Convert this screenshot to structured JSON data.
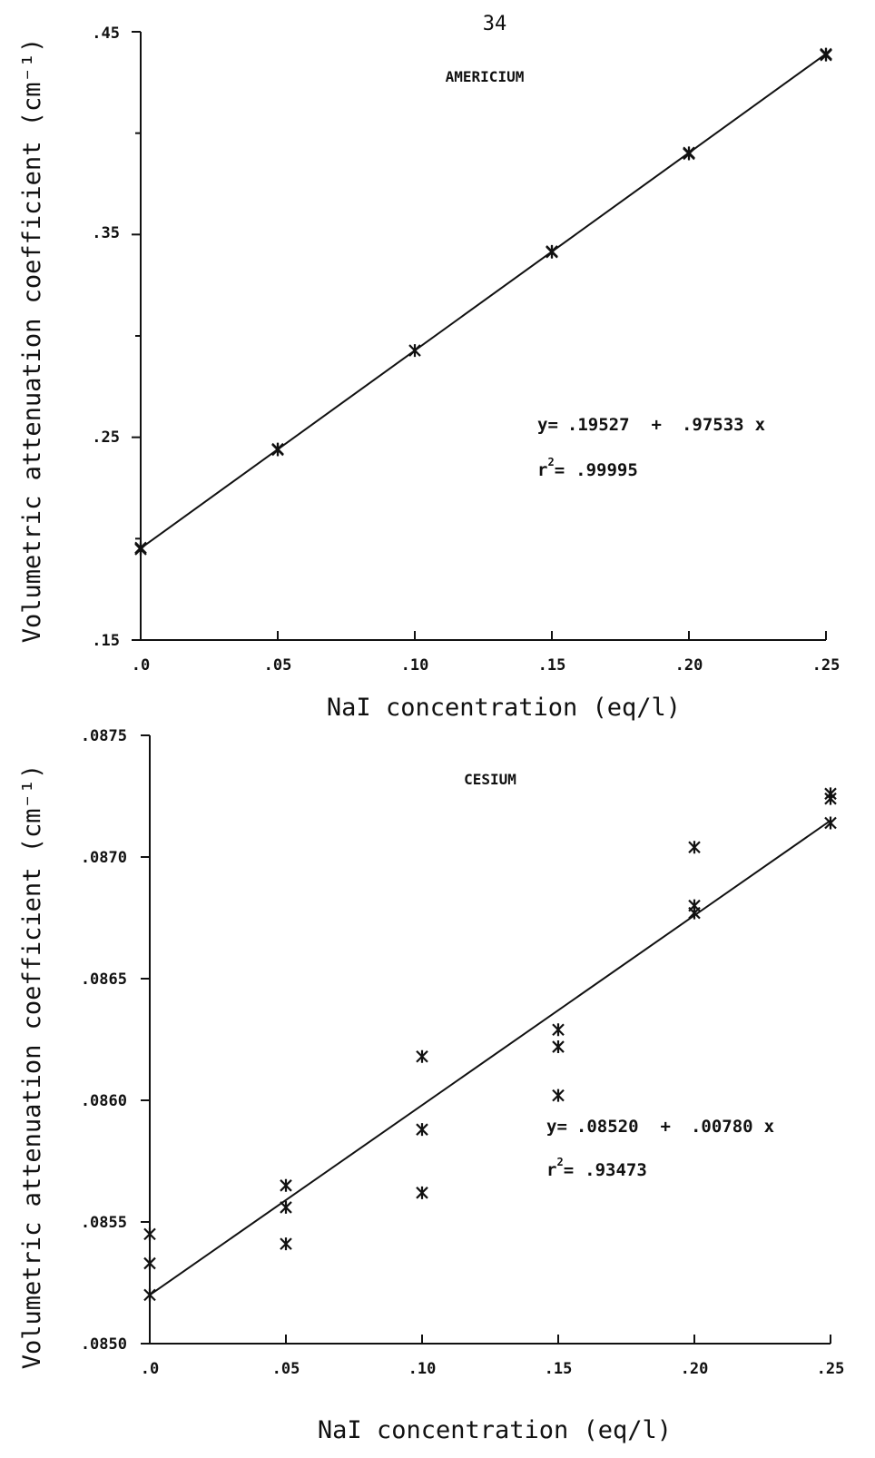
{
  "page_number": "34",
  "chart_data": [
    {
      "type": "scatter",
      "title": "AMERICIUM",
      "xlabel": "NaI concentration (eq/l)",
      "ylabel": "Volumetric attenuation coefficient (cm⁻¹)",
      "x_ticks": [
        ".0",
        ".05",
        ".10",
        ".15",
        ".20",
        ".25"
      ],
      "y_ticks": [
        ".15",
        ".25",
        ".35",
        ".45"
      ],
      "xlim": [
        0,
        0.25
      ],
      "ylim": [
        0.15,
        0.45
      ],
      "series": [
        {
          "points": [
            {
              "x": 0.0,
              "y": 0.1955
            },
            {
              "x": 0.0,
              "y": 0.1948
            },
            {
              "x": 0.05,
              "y": 0.2438
            },
            {
              "x": 0.05,
              "y": 0.2442
            },
            {
              "x": 0.1,
              "y": 0.2928
            },
            {
              "x": 0.15,
              "y": 0.3417
            },
            {
              "x": 0.15,
              "y": 0.3413
            },
            {
              "x": 0.2,
              "y": 0.3903
            },
            {
              "x": 0.2,
              "y": 0.3898
            },
            {
              "x": 0.25,
              "y": 0.439
            },
            {
              "x": 0.25,
              "y": 0.4385
            }
          ]
        }
      ],
      "fit": {
        "intercept": 0.19527,
        "slope": 0.97533
      },
      "equation": {
        "lhs": "y=",
        "intercept": ".19527",
        "plus": "+",
        "slope": ".97533",
        "x": "x",
        "r_symbol": "r",
        "r_exp": "2",
        "r_eq": "=",
        "r_value": ".99995"
      }
    },
    {
      "type": "scatter",
      "title": "CESIUM",
      "xlabel": "NaI concentration (eq/l)",
      "ylabel": "Volumetric attenuation coefficient (cm⁻¹)",
      "x_ticks": [
        ".0",
        ".05",
        ".10",
        ".15",
        ".20",
        ".25"
      ],
      "y_ticks": [
        ".0850",
        ".0855",
        ".0860",
        ".0865",
        ".0870",
        ".0875"
      ],
      "xlim": [
        0,
        0.25
      ],
      "ylim": [
        0.085,
        0.0875
      ],
      "series": [
        {
          "points": [
            {
              "x": 0.0,
              "y": 0.08545
            },
            {
              "x": 0.0,
              "y": 0.08533
            },
            {
              "x": 0.0,
              "y": 0.0852
            },
            {
              "x": 0.05,
              "y": 0.08565
            },
            {
              "x": 0.05,
              "y": 0.08556
            },
            {
              "x": 0.05,
              "y": 0.08541
            },
            {
              "x": 0.1,
              "y": 0.08618
            },
            {
              "x": 0.1,
              "y": 0.08588
            },
            {
              "x": 0.1,
              "y": 0.08562
            },
            {
              "x": 0.15,
              "y": 0.08629
            },
            {
              "x": 0.15,
              "y": 0.08622
            },
            {
              "x": 0.15,
              "y": 0.08602
            },
            {
              "x": 0.2,
              "y": 0.08704
            },
            {
              "x": 0.2,
              "y": 0.0868
            },
            {
              "x": 0.2,
              "y": 0.08677
            },
            {
              "x": 0.25,
              "y": 0.08726
            },
            {
              "x": 0.25,
              "y": 0.08724
            },
            {
              "x": 0.25,
              "y": 0.08714
            }
          ]
        }
      ],
      "fit": {
        "intercept": 0.0852,
        "slope": 0.0078
      },
      "equation": {
        "lhs": "y=",
        "intercept": ".08520",
        "plus": "+",
        "slope": ".00780",
        "x": "x",
        "r_symbol": "r",
        "r_exp": "2",
        "r_eq": "=",
        "r_value": ".93473"
      }
    }
  ]
}
